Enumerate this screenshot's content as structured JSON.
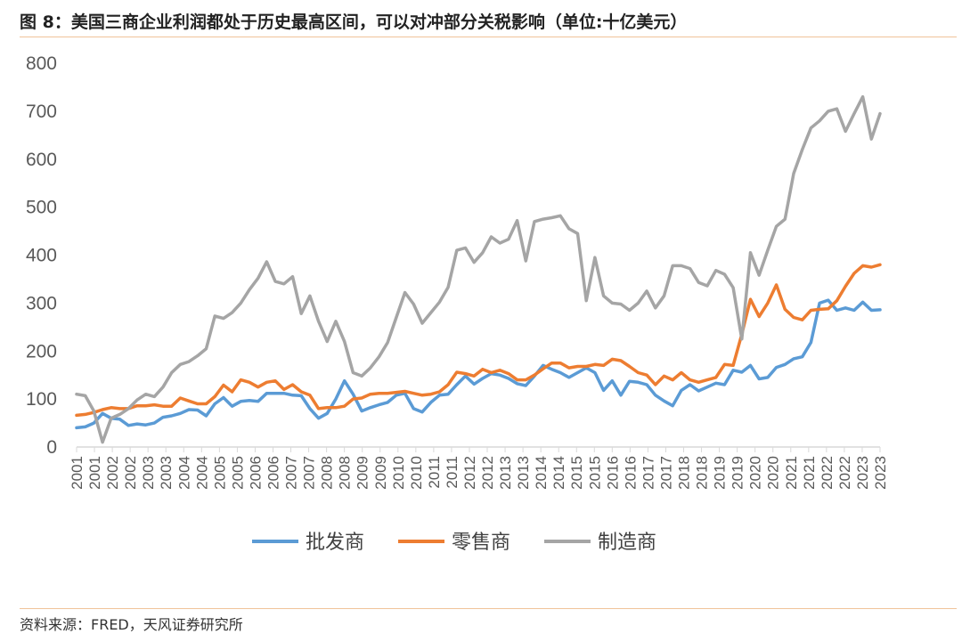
{
  "header": {
    "title": "图 8：美国三商企业利润都处于历史最高区间，可以对冲部分关税影响（单位:十亿美元）"
  },
  "footer": {
    "source": "资料来源：FRED，天风证券研究所"
  },
  "chart_data": {
    "type": "line",
    "title": "图 8：美国三商企业利润都处于历史最高区间，可以对冲部分关税影响（单位:十亿美元）",
    "ylim": [
      0,
      800
    ],
    "yticks": [
      "0",
      "100",
      "200",
      "300",
      "400",
      "500",
      "600",
      "700",
      "800"
    ],
    "xticks": [
      "2001",
      "2001",
      "2002",
      "2002",
      "2003",
      "2003",
      "2004",
      "2004",
      "2005",
      "2005",
      "2006",
      "2006",
      "2007",
      "2007",
      "2008",
      "2008",
      "2009",
      "2009",
      "2010",
      "2010",
      "2011",
      "2011",
      "2012",
      "2012",
      "2013",
      "2013",
      "2014",
      "2014",
      "2015",
      "2015",
      "2016",
      "2016",
      "2017",
      "2017",
      "2018",
      "2018",
      "2019",
      "2019",
      "2020",
      "2020",
      "2021",
      "2021",
      "2022",
      "2022",
      "2023",
      "2023"
    ],
    "grid": false,
    "legend_position": "bottom",
    "series": [
      {
        "name": "批发商",
        "color": "#5b9bd5",
        "values": [
          40,
          42,
          50,
          70,
          60,
          58,
          45,
          48,
          46,
          50,
          62,
          65,
          70,
          78,
          77,
          65,
          90,
          103,
          85,
          95,
          97,
          95,
          112,
          112,
          112,
          108,
          107,
          80,
          60,
          70,
          100,
          138,
          110,
          75,
          82,
          88,
          93,
          108,
          112,
          80,
          73,
          93,
          108,
          110,
          130,
          148,
          131,
          143,
          153,
          150,
          143,
          132,
          128,
          148,
          170,
          162,
          155,
          145,
          155,
          165,
          155,
          118,
          138,
          108,
          137,
          135,
          130,
          108,
          96,
          86,
          118,
          130,
          117,
          125,
          133,
          130,
          160,
          156,
          170,
          142,
          145,
          166,
          172,
          184,
          188,
          218,
          300,
          306,
          285,
          290,
          285,
          302,
          285,
          286
        ]
      },
      {
        "name": "零售商",
        "color": "#ed7d31",
        "values": [
          66,
          68,
          72,
          78,
          82,
          80,
          80,
          86,
          86,
          88,
          85,
          85,
          102,
          96,
          90,
          90,
          105,
          129,
          115,
          140,
          135,
          125,
          135,
          138,
          120,
          130,
          115,
          108,
          80,
          82,
          82,
          85,
          100,
          102,
          110,
          112,
          112,
          114,
          116,
          112,
          108,
          110,
          115,
          130,
          156,
          153,
          148,
          162,
          155,
          160,
          153,
          140,
          140,
          150,
          163,
          175,
          175,
          165,
          168,
          168,
          172,
          170,
          183,
          180,
          168,
          155,
          150,
          130,
          148,
          140,
          155,
          140,
          135,
          140,
          145,
          172,
          170,
          235,
          308,
          272,
          300,
          338,
          287,
          270,
          265,
          285,
          287,
          288,
          305,
          335,
          362,
          378,
          375,
          380
        ]
      },
      {
        "name": "制造商",
        "color": "#a5a5a5",
        "values": [
          110,
          107,
          75,
          10,
          60,
          68,
          80,
          98,
          110,
          105,
          125,
          155,
          172,
          178,
          190,
          205,
          273,
          268,
          280,
          300,
          328,
          352,
          386,
          345,
          340,
          355,
          278,
          315,
          262,
          220,
          262,
          220,
          155,
          148,
          165,
          188,
          218,
          270,
          322,
          298,
          258,
          280,
          302,
          333,
          410,
          415,
          385,
          405,
          438,
          425,
          433,
          472,
          388,
          470,
          475,
          478,
          482,
          455,
          445,
          305,
          395,
          315,
          300,
          298,
          285,
          300,
          325,
          290,
          315,
          378,
          378,
          372,
          343,
          336,
          368,
          360,
          332,
          225,
          405,
          358,
          410,
          460,
          475,
          570,
          620,
          665,
          680,
          700,
          705,
          658,
          695,
          730,
          642,
          695
        ]
      }
    ]
  }
}
